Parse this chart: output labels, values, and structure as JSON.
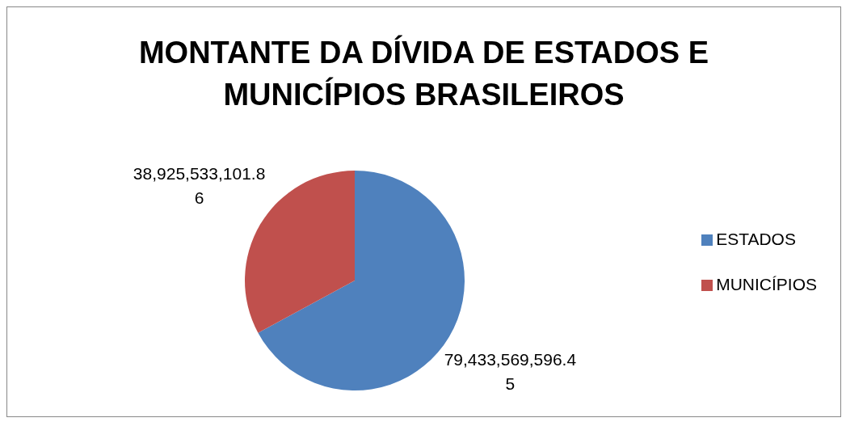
{
  "chart_data": {
    "type": "pie",
    "title": "MONTANTE DA DÍVIDA DE ESTADOS E MUNICÍPIOS BRASILEIROS",
    "categories": [
      "ESTADOS",
      "MUNICÍPIOS"
    ],
    "values": [
      79433569596.45,
      38925533101.86
    ],
    "colors": [
      "#4f81bd",
      "#c0504d"
    ],
    "value_labels": [
      "79,433,569,596.45",
      "38,925,533,101.86"
    ],
    "legend": "right"
  }
}
